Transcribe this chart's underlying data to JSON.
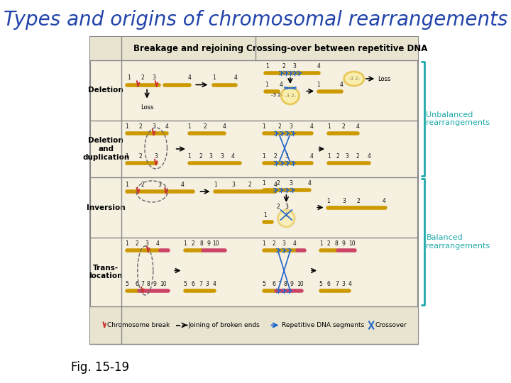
{
  "title": "Types and origins of chromosomal rearrangements",
  "title_color": "#2244aa",
  "title_fontsize": 20,
  "background_color": "#ffffff",
  "fig_caption": "Fig. 15-19",
  "fig_caption_fontsize": 12,
  "unbalanced_label": "Unbalanced\nrearrangements",
  "balanced_label": "Balanced\nrearrangements",
  "bracket_color": "#22aaaa",
  "label_color": "#22aaaa",
  "col_header_left": "Breakage and rejoining",
  "col_header_right": "Crossing-over between repetitive DNA",
  "table_bg": "#f5f0e0",
  "header_bg": "#e8e4d0",
  "cell_border": "#888888",
  "chromosome_color_gold": "#cc9900",
  "chromosome_color_pink": "#cc4466",
  "dna_arrow_color": "#2266cc",
  "break_color": "#cc3333"
}
